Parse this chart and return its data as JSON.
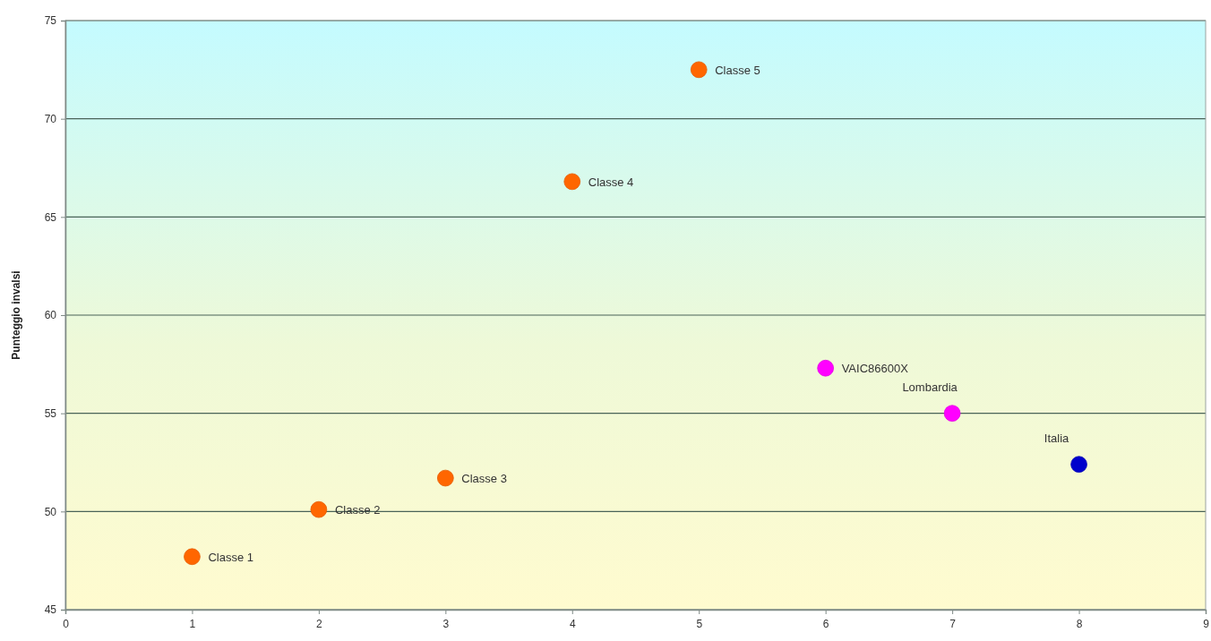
{
  "chart_data": {
    "type": "scatter",
    "ylabel": "Punteggio invalsi",
    "xlim": [
      0,
      9
    ],
    "ylim": [
      45,
      75
    ],
    "xticks": [
      0,
      1,
      2,
      3,
      4,
      5,
      6,
      7,
      8,
      9
    ],
    "yticks": [
      45,
      50,
      55,
      60,
      65,
      70,
      75
    ],
    "grid": "y",
    "marker": "circle",
    "series": [
      {
        "name": "Classe 1",
        "color": "#ff6600",
        "x": [
          1
        ],
        "values": [
          47.7
        ]
      },
      {
        "name": "Classe 2",
        "color": "#ff6600",
        "x": [
          2
        ],
        "values": [
          50.1
        ]
      },
      {
        "name": "Classe 3",
        "color": "#ff6600",
        "x": [
          3
        ],
        "values": [
          51.7
        ]
      },
      {
        "name": "Classe 4",
        "color": "#ff6600",
        "x": [
          4
        ],
        "values": [
          66.8
        ]
      },
      {
        "name": "Classe 5",
        "color": "#ff6600",
        "x": [
          5
        ],
        "values": [
          72.5
        ]
      },
      {
        "name": "VAIC86600X",
        "color": "#ff00ff",
        "x": [
          6
        ],
        "values": [
          57.3
        ]
      },
      {
        "name": "Lombardia",
        "color": "#ff00ff",
        "x": [
          7
        ],
        "values": [
          55.0
        ]
      },
      {
        "name": "Italia",
        "color": "#0000cc",
        "x": [
          8
        ],
        "values": [
          52.4
        ]
      }
    ]
  }
}
